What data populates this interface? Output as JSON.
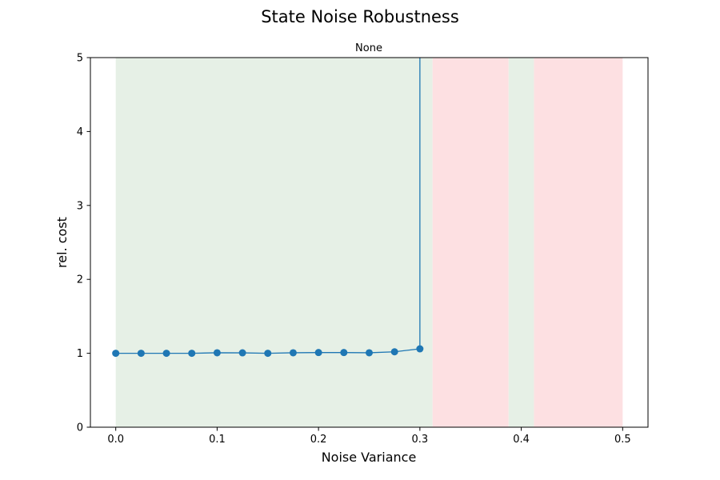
{
  "chart_data": {
    "type": "line",
    "title": "State Noise Robustness",
    "subtitle": "None",
    "xlabel": "Noise Variance",
    "ylabel": "rel. cost",
    "xlim": [
      -0.025,
      0.525
    ],
    "ylim": [
      0,
      5
    ],
    "xticks": [
      0.0,
      0.1,
      0.2,
      0.3,
      0.4,
      0.5
    ],
    "xtick_labels": [
      "0.0",
      "0.1",
      "0.2",
      "0.3",
      "0.4",
      "0.5"
    ],
    "yticks": [
      0,
      1,
      2,
      3,
      4,
      5
    ],
    "ytick_labels": [
      "0",
      "1",
      "2",
      "3",
      "4",
      "5"
    ],
    "grid": false,
    "legend": "none",
    "series": [
      {
        "color": "#1f77b4",
        "x": [
          0.0,
          0.025,
          0.05,
          0.075,
          0.1,
          0.125,
          0.15,
          0.175,
          0.2,
          0.225,
          0.25,
          0.275,
          0.3
        ],
        "values": [
          1.0,
          1.0,
          1.0,
          1.0,
          1.007,
          1.006,
          1.0,
          1.007,
          1.01,
          1.01,
          1.007,
          1.02,
          1.06
        ],
        "continues_above_ylim_at_x": 0.3
      }
    ],
    "bands": [
      {
        "x0": 0.0,
        "x1": 0.3125,
        "color": "#e6f0e6",
        "status": "green"
      },
      {
        "x0": 0.3125,
        "x1": 0.3875,
        "color": "#fde0e2",
        "status": "red"
      },
      {
        "x0": 0.3875,
        "x1": 0.4125,
        "color": "#e6f0e6",
        "status": "green"
      },
      {
        "x0": 0.4125,
        "x1": 0.5,
        "color": "#fde0e2",
        "status": "red"
      }
    ]
  }
}
